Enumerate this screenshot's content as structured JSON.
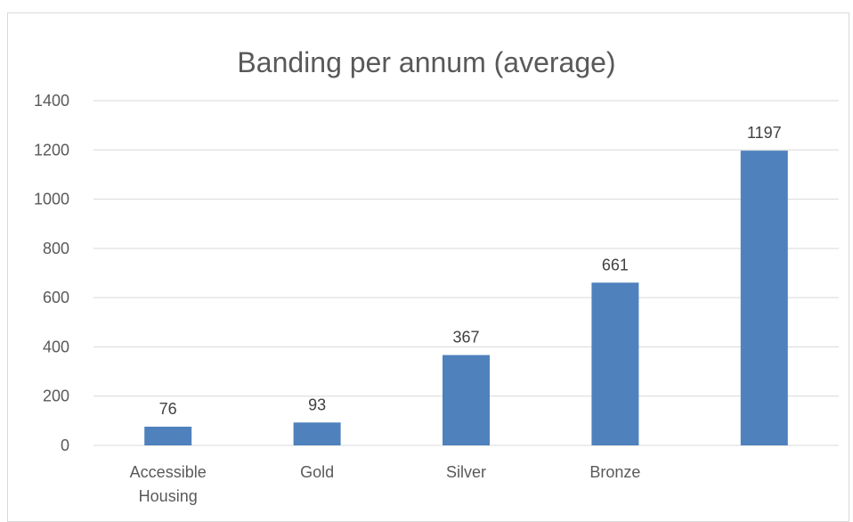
{
  "chart_data": {
    "type": "bar",
    "title": "Banding per annum (average)",
    "xlabel": "",
    "ylabel": "",
    "categories": [
      "Accessible Housing",
      "Gold",
      "Silver",
      "Bronze",
      ""
    ],
    "category_lines": [
      [
        "Accessible",
        "Housing"
      ],
      [
        "Gold"
      ],
      [
        "Silver"
      ],
      [
        "Bronze"
      ],
      [
        ""
      ]
    ],
    "values": [
      76,
      93,
      367,
      661,
      1197
    ],
    "data_labels": [
      "76",
      "93",
      "367",
      "661",
      "1197"
    ],
    "ylim": [
      0,
      1400
    ],
    "yticks": [
      0,
      200,
      400,
      600,
      800,
      1000,
      1200,
      1400
    ],
    "grid": true,
    "legend": "none",
    "bar_color": "#4f81bd",
    "grid_color": "#d9d9d9",
    "axis_text_color": "#595959",
    "label_color": "#404040"
  }
}
